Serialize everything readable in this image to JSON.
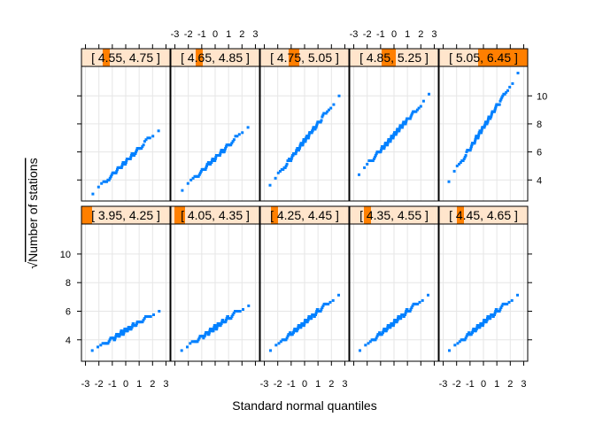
{
  "chart_data": {
    "type": "scatter",
    "xlabel": "Standard normal quantiles",
    "ylabel": "Number of stations",
    "ylabel_prefix": "√",
    "xlim": [
      -3.3,
      3.3
    ],
    "ylim": [
      2.5,
      12.1
    ],
    "x_ticks": [
      "-3",
      "-2",
      "-1",
      "0",
      "1",
      "2",
      "3"
    ],
    "y_ticks": [
      "4",
      "6",
      "8",
      "10"
    ],
    "point_color": "#0080ff",
    "strip_bg": "#ffe5cc",
    "strip_fill": "#ff7f00",
    "panels": [
      {
        "label": "[ 4.55, 4.75 ]",
        "shade": [
          4.55,
          4.75
        ],
        "n": 70,
        "lo": 3.0,
        "hi": 7.6
      },
      {
        "label": "[ 4.65, 4.85 ]",
        "shade": [
          4.65,
          4.85
        ],
        "n": 70,
        "lo": 3.3,
        "hi": 7.8
      },
      {
        "label": "[ 4.75, 5.05 ]",
        "shade": [
          4.75,
          5.05
        ],
        "n": 100,
        "lo": 3.6,
        "hi": 10.0
      },
      {
        "label": "[ 4.85, 5.25 ]",
        "shade": [
          4.85,
          5.25
        ],
        "n": 110,
        "lo": 4.4,
        "hi": 10.0
      },
      {
        "label": "[ 5.05, 6.45 ]",
        "shade": [
          5.05,
          6.45
        ],
        "n": 100,
        "lo": 3.9,
        "hi": 11.6
      },
      {
        "label": "[ 3.95, 4.25 ]",
        "shade": [
          3.95,
          4.25
        ],
        "n": 80,
        "lo": 3.2,
        "hi": 6.1
      },
      {
        "label": "[ 4.05, 4.35 ]",
        "shade": [
          4.05,
          4.35
        ],
        "n": 80,
        "lo": 3.2,
        "hi": 6.5
      },
      {
        "label": "[ 4.25, 4.45 ]",
        "shade": [
          4.25,
          4.45
        ],
        "n": 90,
        "lo": 3.2,
        "hi": 7.2
      },
      {
        "label": "[ 4.35, 4.55 ]",
        "shade": [
          4.35,
          4.55
        ],
        "n": 90,
        "lo": 3.2,
        "hi": 7.2
      },
      {
        "label": "[ 4.45, 4.65 ]",
        "shade": [
          4.45,
          4.65
        ],
        "n": 90,
        "lo": 3.2,
        "hi": 7.2
      }
    ]
  }
}
